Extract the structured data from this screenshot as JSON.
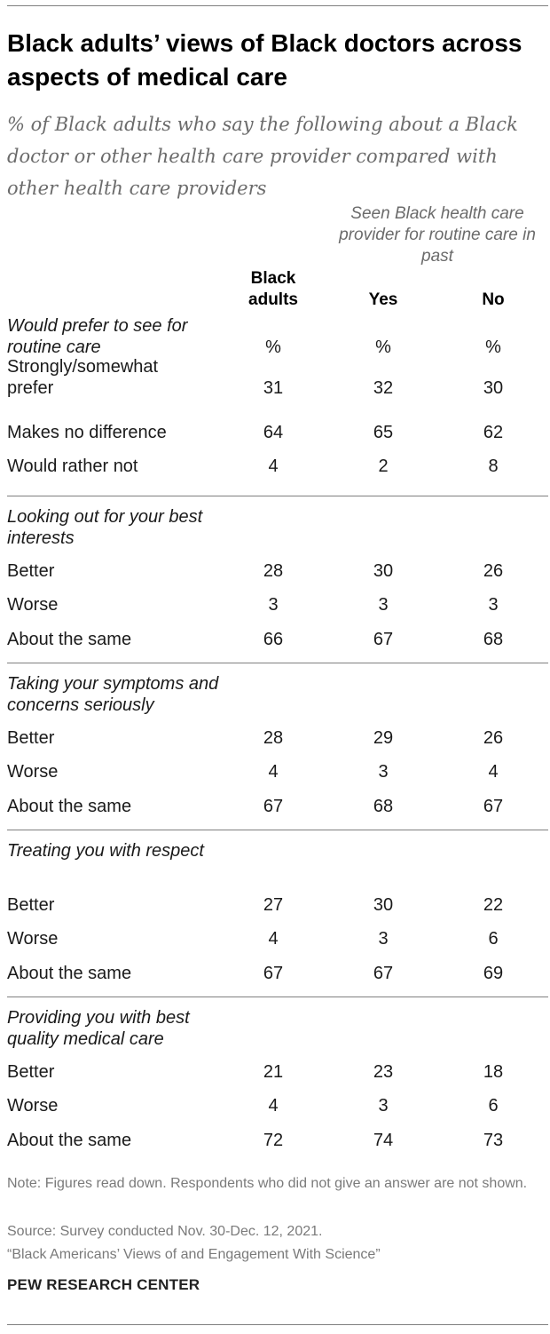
{
  "chart_data": {
    "type": "table",
    "title": "Black adults’ views of Black doctors across aspects of medical care",
    "subtitle": "% of Black adults who say the following about a Black doctor or other health care provider compared with other health care providers",
    "group_header": "Seen Black health care provider for routine care in past",
    "columns": [
      "Black adults",
      "Yes",
      "No"
    ],
    "sections": [
      {
        "heading": "Would prefer to see for routine care",
        "units": [
          "%",
          "%",
          "%"
        ],
        "rows": [
          {
            "label": "Strongly/somewhat prefer",
            "values": [
              "31",
              "32",
              "30"
            ]
          },
          {
            "label": "Makes no difference",
            "values": [
              "64",
              "65",
              "62"
            ]
          },
          {
            "label": "Would rather not",
            "values": [
              "4",
              "2",
              "8"
            ]
          }
        ]
      },
      {
        "heading": "Looking out for your best interests",
        "rows": [
          {
            "label": "Better",
            "values": [
              "28",
              "30",
              "26"
            ]
          },
          {
            "label": "Worse",
            "values": [
              "3",
              "3",
              "3"
            ]
          },
          {
            "label": "About the same",
            "values": [
              "66",
              "67",
              "68"
            ]
          }
        ]
      },
      {
        "heading": "Taking your symptoms and concerns seriously",
        "rows": [
          {
            "label": "Better",
            "values": [
              "28",
              "29",
              "26"
            ]
          },
          {
            "label": "Worse",
            "values": [
              "4",
              "3",
              "4"
            ]
          },
          {
            "label": "About the same",
            "values": [
              "67",
              "68",
              "67"
            ]
          }
        ]
      },
      {
        "heading": "Treating you with respect",
        "rows": [
          {
            "label": "Better",
            "values": [
              "27",
              "30",
              "22"
            ]
          },
          {
            "label": "Worse",
            "values": [
              "4",
              "3",
              "6"
            ]
          },
          {
            "label": "About the same",
            "values": [
              "67",
              "67",
              "69"
            ]
          }
        ]
      },
      {
        "heading": "Providing you with best quality medical care",
        "rows": [
          {
            "label": "Better",
            "values": [
              "21",
              "23",
              "18"
            ]
          },
          {
            "label": "Worse",
            "values": [
              "4",
              "3",
              "6"
            ]
          },
          {
            "label": "About the same",
            "values": [
              "72",
              "74",
              "73"
            ]
          }
        ]
      }
    ]
  },
  "notes": {
    "note": "Note: Figures read down. Respondents who did not give an answer are not shown.",
    "source": "Source: Survey conducted Nov. 30-Dec. 12, 2021.",
    "report": "“Black Americans’ Views of and Engagement With Science”"
  },
  "brand": "PEW RESEARCH CENTER"
}
